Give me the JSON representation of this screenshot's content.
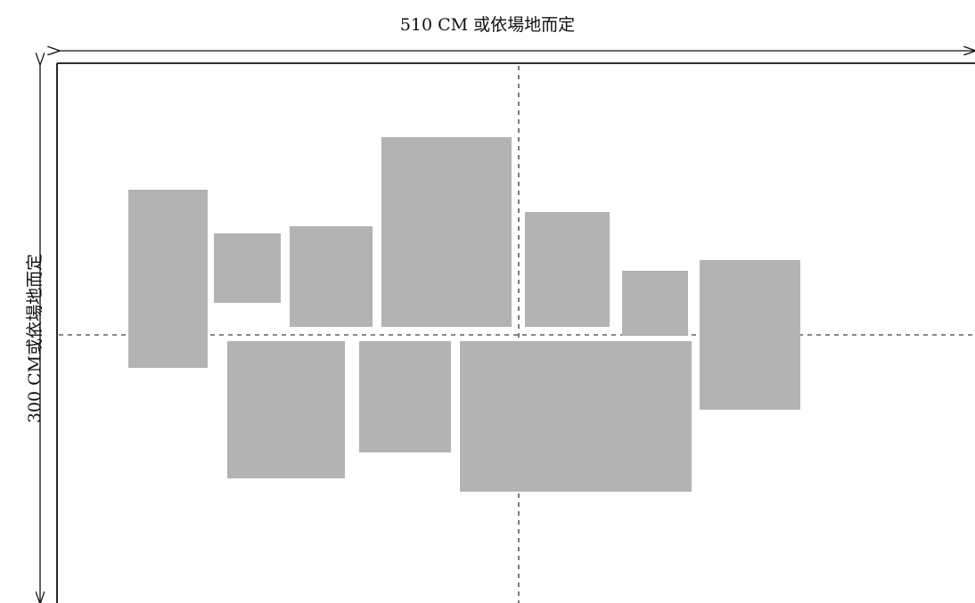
{
  "dimensions": {
    "width_label": "510 CM 或依場地而定",
    "height_label": "300 CM或依場地而定"
  },
  "colors": {
    "frame_fill": "#b3b3b4",
    "line": "#111111",
    "background": "#ffffff"
  }
}
